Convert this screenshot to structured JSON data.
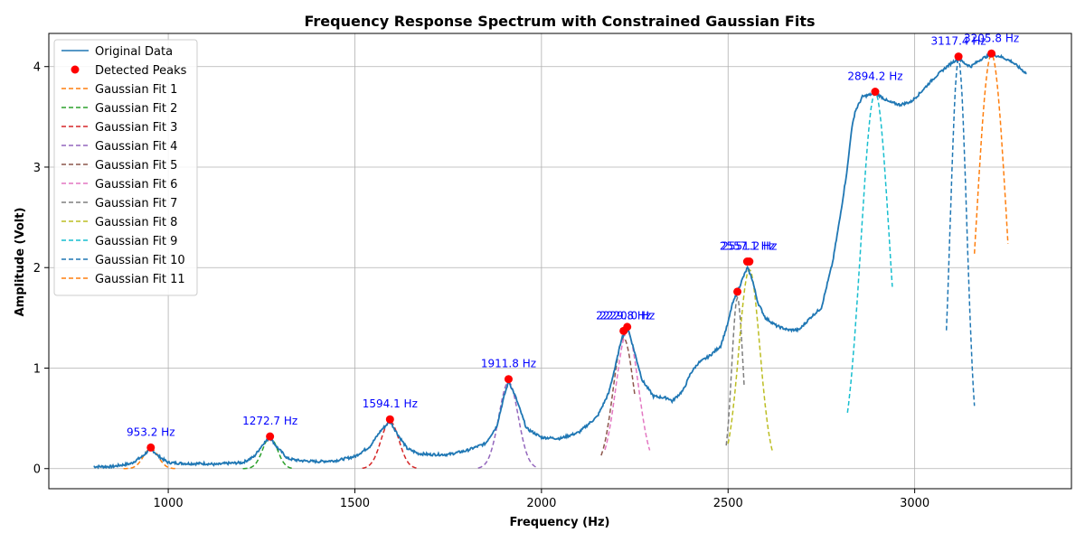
{
  "chart_data": {
    "type": "line",
    "title": "Frequency Response Spectrum with Constrained Gaussian Fits",
    "xlabel": "Frequency (Hz)",
    "ylabel": "Amplitude (Volt)",
    "xlim": [
      680,
      3420
    ],
    "ylim": [
      -0.2,
      4.33
    ],
    "xticks": [
      1000,
      1500,
      2000,
      2500,
      3000
    ],
    "yticks": [
      0,
      1,
      2,
      3,
      4
    ],
    "grid": true,
    "legend_position": "top-left",
    "colors": {
      "data": "#1f77b4",
      "peaks": "#ff0000",
      "annotation": "#0000ff",
      "fits": [
        "#ff7f0e",
        "#2ca02c",
        "#d62728",
        "#9467bd",
        "#8c564b",
        "#e377c2",
        "#7f7f7f",
        "#bcbd22",
        "#17becf",
        "#1f77b4",
        "#ff7f0e"
      ]
    },
    "series": [
      {
        "name": "Original Data",
        "x": [
          800,
          850,
          900,
          930,
          953,
          975,
          1000,
          1050,
          1100,
          1130,
          1150,
          1200,
          1230,
          1255,
          1272,
          1290,
          1320,
          1350,
          1400,
          1450,
          1500,
          1540,
          1570,
          1594,
          1615,
          1640,
          1670,
          1700,
          1750,
          1800,
          1850,
          1880,
          1900,
          1912,
          1930,
          1960,
          2000,
          2050,
          2100,
          2150,
          2180,
          2200,
          2215,
          2225,
          2233,
          2250,
          2270,
          2300,
          2340,
          2350,
          2380,
          2400,
          2420,
          2450,
          2480,
          2500,
          2510,
          2525,
          2540,
          2552,
          2565,
          2580,
          2600,
          2630,
          2660,
          2690,
          2720,
          2750,
          2780,
          2800,
          2820,
          2830,
          2840,
          2860,
          2880,
          2894,
          2910,
          2930,
          2960,
          2990,
          3010,
          3050,
          3080,
          3100,
          3117,
          3135,
          3150,
          3180,
          3206,
          3230,
          3260,
          3300
        ],
        "y": [
          0.02,
          0.02,
          0.05,
          0.12,
          0.2,
          0.12,
          0.06,
          0.05,
          0.05,
          0.04,
          0.05,
          0.06,
          0.12,
          0.25,
          0.31,
          0.22,
          0.1,
          0.08,
          0.07,
          0.08,
          0.12,
          0.22,
          0.38,
          0.47,
          0.34,
          0.2,
          0.15,
          0.14,
          0.14,
          0.18,
          0.25,
          0.42,
          0.72,
          0.87,
          0.72,
          0.4,
          0.31,
          0.3,
          0.36,
          0.52,
          0.75,
          1.05,
          1.3,
          1.36,
          1.38,
          1.15,
          0.88,
          0.72,
          0.7,
          0.67,
          0.78,
          0.95,
          1.05,
          1.12,
          1.22,
          1.45,
          1.62,
          1.76,
          1.9,
          2.0,
          1.88,
          1.65,
          1.5,
          1.42,
          1.38,
          1.38,
          1.5,
          1.6,
          2.05,
          2.5,
          3.0,
          3.35,
          3.55,
          3.7,
          3.72,
          3.74,
          3.7,
          3.65,
          3.62,
          3.65,
          3.72,
          3.88,
          3.98,
          4.04,
          4.08,
          4.03,
          4.0,
          4.08,
          4.12,
          4.1,
          4.05,
          3.93
        ]
      },
      {
        "name": "Detected Peaks",
        "x": [
          953.2,
          1272.7,
          1594.1,
          1911.8,
          2220.0,
          2229.8,
          2525.0,
          2551.2,
          2557.1,
          2894.2,
          3117.4,
          3205.8
        ],
        "y": [
          0.21,
          0.32,
          0.49,
          0.89,
          1.37,
          1.41,
          1.76,
          2.06,
          2.06,
          3.75,
          4.1,
          4.13
        ]
      }
    ],
    "fits": [
      {
        "name": "Gaussian Fit 1",
        "center": 953.2,
        "amp": 0.2,
        "sigma": 20,
        "range": [
          880,
          1025
        ]
      },
      {
        "name": "Gaussian Fit 2",
        "center": 1272.7,
        "amp": 0.31,
        "sigma": 20,
        "range": [
          1200,
          1340
        ]
      },
      {
        "name": "Gaussian Fit 3",
        "center": 1594.1,
        "amp": 0.47,
        "sigma": 24,
        "range": [
          1520,
          1670
        ]
      },
      {
        "name": "Gaussian Fit 4",
        "center": 1911.8,
        "amp": 0.86,
        "sigma": 26,
        "range": [
          1830,
          1990
        ]
      },
      {
        "name": "Gaussian Fit 5",
        "center": 2220.0,
        "amp": 1.3,
        "sigma": 28,
        "range": [
          2160,
          2250
        ]
      },
      {
        "name": "Gaussian Fit 6",
        "center": 2229.8,
        "amp": 1.36,
        "sigma": 30,
        "range": [
          2170,
          2290
        ]
      },
      {
        "name": "Gaussian Fit 7",
        "center": 2525.0,
        "amp": 1.7,
        "sigma": 15,
        "range": [
          2495,
          2545
        ]
      },
      {
        "name": "Gaussian Fit 8",
        "center": 2557.1,
        "amp": 1.98,
        "sigma": 28,
        "range": [
          2500,
          2620
        ]
      },
      {
        "name": "Gaussian Fit 9",
        "center": 2894.2,
        "amp": 3.74,
        "sigma": 38,
        "range": [
          2820,
          2940
        ]
      },
      {
        "name": "Gaussian Fit 10",
        "center": 3117.4,
        "amp": 4.07,
        "sigma": 22,
        "range": [
          3085,
          3160
        ]
      },
      {
        "name": "Gaussian Fit 11",
        "center": 3205.8,
        "amp": 4.12,
        "sigma": 40,
        "range": [
          3160,
          3250
        ]
      }
    ],
    "annotations": [
      {
        "text": "953.2 Hz",
        "x": 953.2,
        "y": 0.21
      },
      {
        "text": "1272.7 Hz",
        "x": 1272.7,
        "y": 0.32
      },
      {
        "text": "1594.1 Hz",
        "x": 1594.1,
        "y": 0.49
      },
      {
        "text": "1911.8 Hz",
        "x": 1911.8,
        "y": 0.89
      },
      {
        "text": "2229.8 Hz",
        "x": 2220.0,
        "y": 1.37
      },
      {
        "text": "2220.0 Hz",
        "x": 2229.8,
        "y": 1.37
      },
      {
        "text": "2557.1 Hz",
        "x": 2551.2,
        "y": 2.06
      },
      {
        "text": "2551.2 Hz",
        "x": 2557.1,
        "y": 2.06
      },
      {
        "text": "2894.2 Hz",
        "x": 2894.2,
        "y": 3.75
      },
      {
        "text": "3117.4 Hz",
        "x": 3117.4,
        "y": 4.1
      },
      {
        "text": "3205.8 Hz",
        "x": 3205.8,
        "y": 4.13
      }
    ]
  }
}
